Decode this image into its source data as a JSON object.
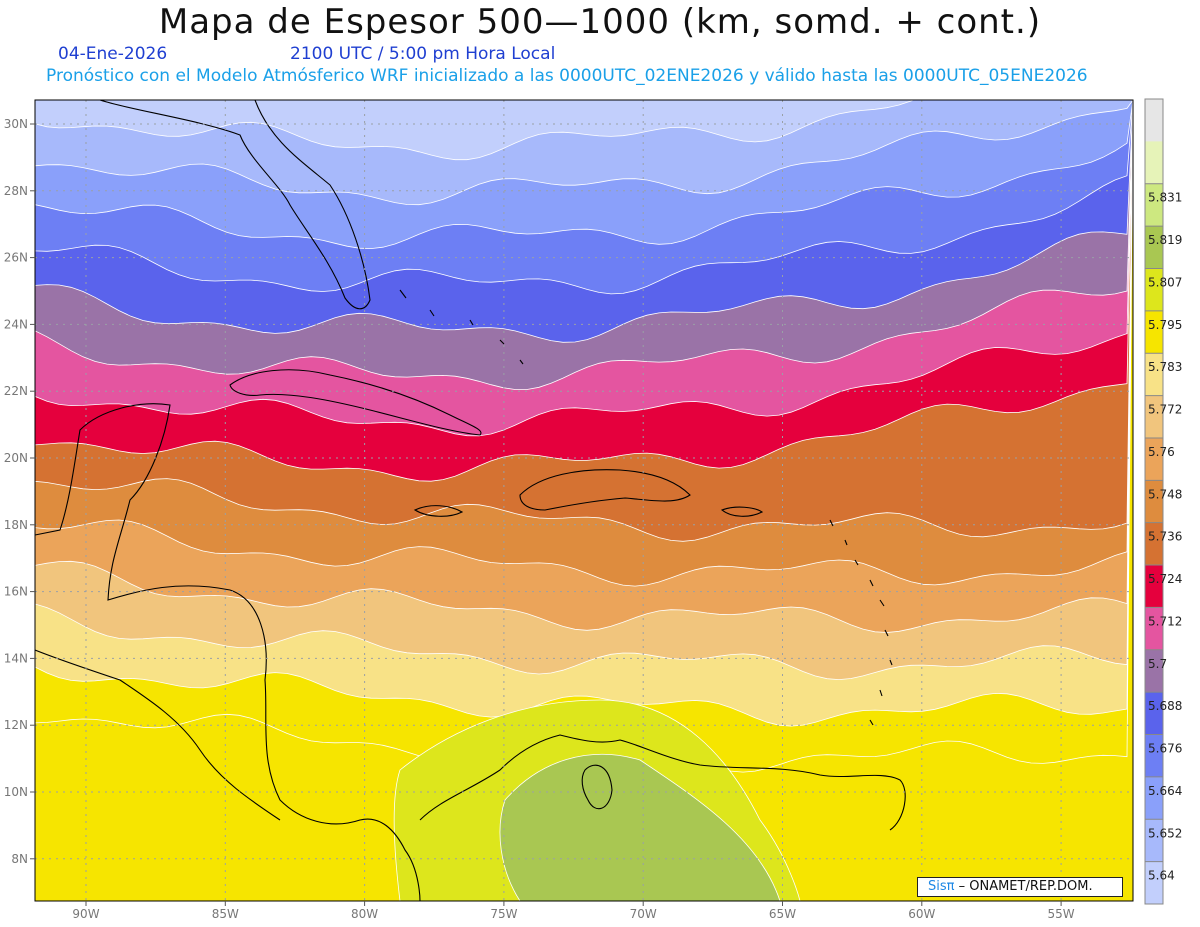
{
  "title": "Mapa de Espesor 500—1000 (km, somd. + cont.)",
  "date": "04-Ene-2026",
  "valid_time": "2100 UTC / 5:00 pm Hora Local",
  "description": "Pronóstico con el Modelo Atmósferico WRF inicializado a las 0000UTC_02ENE2026 y válido hasta las  0000UTC_05ENE2026",
  "credit": {
    "brand": "Sisπ",
    "text": "– ONAMET/REP.DOM."
  },
  "axes": {
    "lat_labels": [
      "30N",
      "28N",
      "26N",
      "24N",
      "22N",
      "20N",
      "18N",
      "16N",
      "14N",
      "12N",
      "10N",
      "8N"
    ],
    "lon_labels": [
      "90W",
      "85W",
      "80W",
      "75W",
      "70W",
      "65W",
      "60W",
      "55W"
    ]
  },
  "colorbar": {
    "levels": [
      "5.64",
      "5.652",
      "5.664",
      "5.676",
      "5.688",
      "5.7",
      "5.712",
      "5.724",
      "5.736",
      "5.748",
      "5.76",
      "5.772",
      "5.783",
      "5.795",
      "5.807",
      "5.819",
      "5.831"
    ],
    "colors": [
      "#c2cffc",
      "#a7b9fb",
      "#8aa0fa",
      "#6d7ff4",
      "#5a63ec",
      "#9a73a7",
      "#e455a0",
      "#e5003d",
      "#d57232",
      "#de8c3e",
      "#eba45a",
      "#f1c57d",
      "#f8e287",
      "#f6e500",
      "#dde61c",
      "#a9c752",
      "#cde880",
      "#e6f3b8",
      "#e6e6e6"
    ]
  },
  "map": {
    "bands_north_to_south": [
      "#c2cffc",
      "#a7b9fb",
      "#8aa0fa",
      "#6d7ff4",
      "#5a63ec",
      "#9a73a7",
      "#e455a0",
      "#e5003d",
      "#d57232",
      "#de8c3e",
      "#eba45a",
      "#f1c57d",
      "#f8e287",
      "#f6e500"
    ],
    "green_core": [
      "#dde61c",
      "#a9c752"
    ]
  }
}
